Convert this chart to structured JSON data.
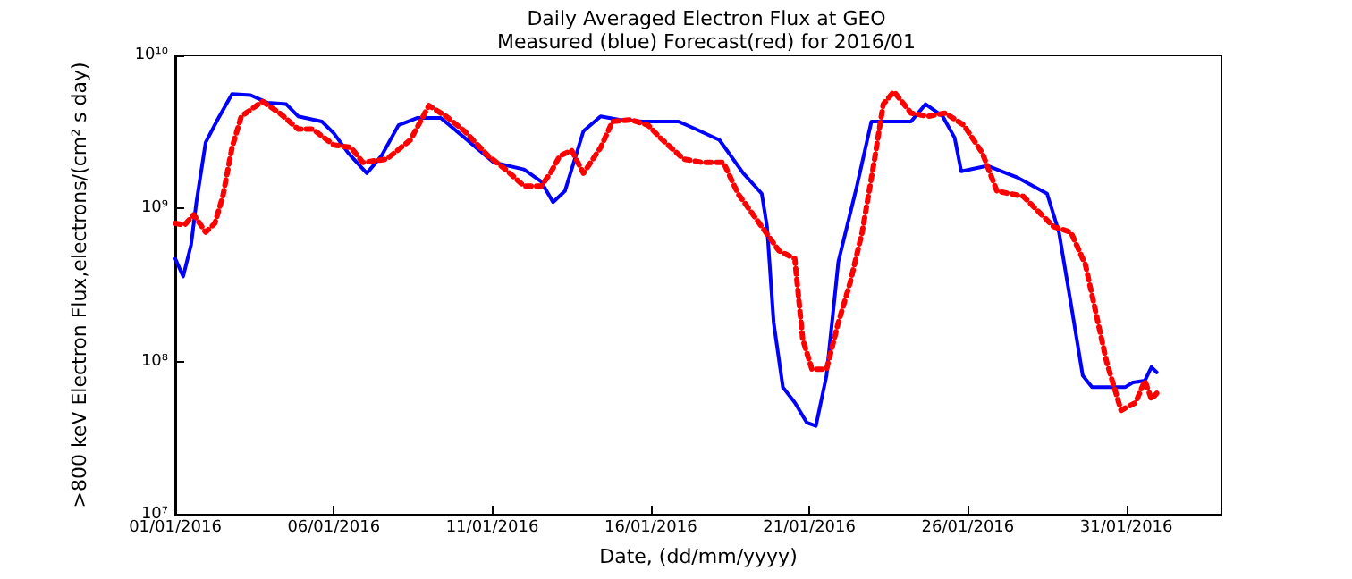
{
  "chart_data": {
    "type": "line",
    "title": "Daily Averaged Electron Flux at GEO",
    "subtitle": "Measured (blue) Forecast(red) for 2016/01",
    "xlabel": "Date, (dd/mm/yyyy)",
    "ylabel": ">800 keV Electron Flux,electrons/(cm² s day)",
    "log": "y",
    "grid": false,
    "xlim": [
      "2016-01-01",
      "2016-02-03"
    ],
    "xticks": [
      {
        "value": "2016-01-01",
        "label": "01/01/2016"
      },
      {
        "value": "2016-01-06",
        "label": "06/01/2016"
      },
      {
        "value": "2016-01-11",
        "label": "11/01/2016"
      },
      {
        "value": "2016-01-16",
        "label": "16/01/2016"
      },
      {
        "value": "2016-01-21",
        "label": "21/01/2016"
      },
      {
        "value": "2016-01-26",
        "label": "26/01/2016"
      },
      {
        "value": "2016-01-31",
        "label": "31/01/2016"
      }
    ],
    "ylim": [
      10000000,
      10000000000
    ],
    "yticks": [
      {
        "value": 10000000,
        "label": "10⁷"
      },
      {
        "value": 100000000,
        "label": "10⁸"
      },
      {
        "value": 1000000000,
        "label": "10⁹"
      },
      {
        "value": 10000000000,
        "label": "10¹⁰"
      }
    ],
    "series": [
      {
        "color": "#0000ff",
        "line_style": "solid",
        "x": [
          "2016-01-01T00:00",
          "2016-01-01T06:00",
          "2016-01-01T12:00",
          "2016-01-01T16:00",
          "2016-01-01T23:00",
          "2016-01-02T08:00",
          "2016-01-02T19:00",
          "2016-01-03T09:00",
          "2016-01-03T22:00",
          "2016-01-04T12:00",
          "2016-01-04T21:00",
          "2016-01-05T15:00",
          "2016-01-06T00:00",
          "2016-01-06T11:00",
          "2016-01-07T01:00",
          "2016-01-07T12:00",
          "2016-01-08T01:00",
          "2016-01-08T15:00",
          "2016-01-09T09:00",
          "2016-01-10T03:00",
          "2016-01-11T01:00",
          "2016-01-12T00:00",
          "2016-01-12T13:00",
          "2016-01-12T22:00",
          "2016-01-13T07:00",
          "2016-01-13T21:00",
          "2016-01-14T10:00",
          "2016-01-15T00:00",
          "2016-01-15T18:00",
          "2016-01-16T21:00",
          "2016-01-17T10:00",
          "2016-01-18T04:00",
          "2016-01-18T22:00",
          "2016-01-19T12:00",
          "2016-01-19T16:00",
          "2016-01-19T21:00",
          "2016-01-20T04:00",
          "2016-01-20T13:00",
          "2016-01-20T22:00",
          "2016-01-21T05:00",
          "2016-01-21T13:00",
          "2016-01-21T22:00",
          "2016-01-22T12:00",
          "2016-01-22T23:00",
          "2016-01-24T05:00",
          "2016-01-24T16:00",
          "2016-01-25T05:00",
          "2016-01-25T14:00",
          "2016-01-25T19:00",
          "2016-01-26T15:00",
          "2016-01-27T13:00",
          "2016-01-28T12:00",
          "2016-01-28T21:00",
          "2016-01-29T06:00",
          "2016-01-29T15:00",
          "2016-01-29T22:00",
          "2016-01-30T23:00",
          "2016-01-31T05:00",
          "2016-01-31T14:00",
          "2016-01-31T19:00",
          "2016-01-31T23:00"
        ],
        "values": [
          470000000,
          360000000,
          580000000,
          1100000000,
          2700000000,
          3800000000,
          5600000000,
          5500000000,
          4900000000,
          4800000000,
          4000000000,
          3700000000,
          3100000000,
          2300000000,
          1700000000,
          2200000000,
          3500000000,
          3900000000,
          3900000000,
          2900000000,
          2000000000,
          1800000000,
          1500000000,
          1100000000,
          1300000000,
          3200000000,
          4000000000,
          3800000000,
          3700000000,
          3700000000,
          3300000000,
          2800000000,
          1700000000,
          1250000000,
          760000000,
          180000000,
          68000000,
          54000000,
          40000000,
          38000000,
          81000000,
          450000000,
          1400000000,
          3700000000,
          3700000000,
          4800000000,
          4000000000,
          2900000000,
          1750000000,
          1900000000,
          1600000000,
          1250000000,
          700000000,
          240000000,
          81000000,
          68000000,
          68000000,
          73000000,
          75000000,
          92000000,
          85000000
        ]
      },
      {
        "color": "#ff0000",
        "line_style": "dotted",
        "x": [
          "2016-01-01T00:00",
          "2016-01-01T07:00",
          "2016-01-01T14:00",
          "2016-01-01T23:00",
          "2016-01-02T06:00",
          "2016-01-02T12:00",
          "2016-01-02T19:00",
          "2016-01-03T02:00",
          "2016-01-03T18:00",
          "2016-01-04T07:00",
          "2016-01-04T21:00",
          "2016-01-05T08:00",
          "2016-01-06T00:00",
          "2016-01-06T13:00",
          "2016-01-06T22:00",
          "2016-01-07T16:00",
          "2016-01-08T10:00",
          "2016-01-09T00:00",
          "2016-01-09T13:00",
          "2016-01-10T03:00",
          "2016-01-10T21:00",
          "2016-01-11T10:00",
          "2016-01-12T00:00",
          "2016-01-12T13:00",
          "2016-01-12T20:00",
          "2016-01-13T03:00",
          "2016-01-13T12:00",
          "2016-01-13T21:00",
          "2016-01-14T10:00",
          "2016-01-14T19:00",
          "2016-01-15T09:00",
          "2016-01-15T22:00",
          "2016-01-16T07:00",
          "2016-01-17T01:00",
          "2016-01-17T15:00",
          "2016-01-18T07:00",
          "2016-01-18T18:00",
          "2016-01-19T12:00",
          "2016-01-20T01:00",
          "2016-01-20T13:00",
          "2016-01-20T19:00",
          "2016-01-21T02:00",
          "2016-01-21T13:00",
          "2016-01-21T22:00",
          "2016-01-22T07:00",
          "2016-01-22T16:00",
          "2016-01-23T01:00",
          "2016-01-23T08:00",
          "2016-01-23T16:00",
          "2016-01-24T05:00",
          "2016-01-24T18:00",
          "2016-01-25T07:00",
          "2016-01-25T21:00",
          "2016-01-26T11:00",
          "2016-01-26T22:00",
          "2016-01-27T18:00",
          "2016-01-28T17:00",
          "2016-01-29T06:00",
          "2016-01-29T17:00",
          "2016-01-30T09:00",
          "2016-01-30T20:00",
          "2016-01-31T07:00",
          "2016-01-31T14:00",
          "2016-01-31T19:00",
          "2016-01-31T23:00"
        ],
        "values": [
          800000000,
          780000000,
          910000000,
          700000000,
          800000000,
          1200000000,
          2500000000,
          4000000000,
          5000000000,
          4200000000,
          3300000000,
          3300000000,
          2600000000,
          2500000000,
          2000000000,
          2100000000,
          2800000000,
          4700000000,
          4000000000,
          3200000000,
          2200000000,
          1800000000,
          1400000000,
          1400000000,
          1700000000,
          2200000000,
          2400000000,
          1700000000,
          2500000000,
          3700000000,
          3800000000,
          3500000000,
          2900000000,
          2100000000,
          2000000000,
          2000000000,
          1250000000,
          760000000,
          530000000,
          470000000,
          140000000,
          89000000,
          89000000,
          180000000,
          330000000,
          700000000,
          2000000000,
          4800000000,
          5800000000,
          4200000000,
          4000000000,
          4200000000,
          3500000000,
          2300000000,
          1300000000,
          1200000000,
          760000000,
          700000000,
          430000000,
          100000000,
          48000000,
          54000000,
          75000000,
          57000000,
          62000000
        ]
      }
    ]
  }
}
